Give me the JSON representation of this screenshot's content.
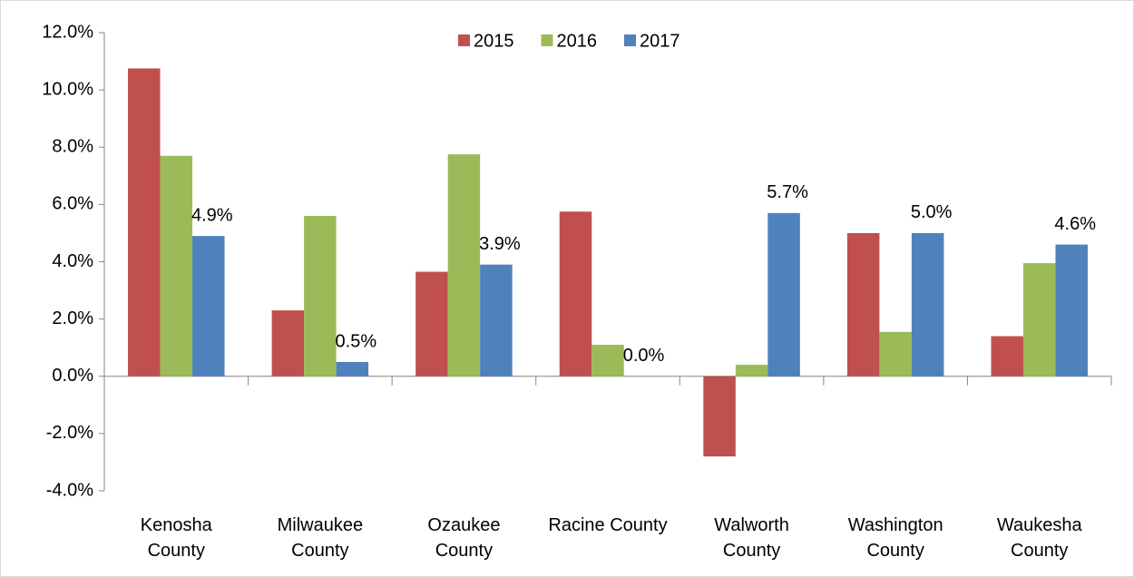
{
  "chart_data": {
    "type": "bar",
    "categories": [
      "Kenosha\nCounty",
      "Milwaukee\nCounty",
      "Ozaukee\nCounty",
      "Racine County",
      "Walworth\nCounty",
      "Washington\nCounty",
      "Waukesha\nCounty"
    ],
    "series": [
      {
        "name": "2015",
        "color": "#c0504d",
        "values": [
          10.75,
          2.3,
          3.65,
          5.75,
          -2.8,
          5.0,
          1.4
        ]
      },
      {
        "name": "2016",
        "color": "#9bbb59",
        "values": [
          7.7,
          5.6,
          7.75,
          1.1,
          0.4,
          1.55,
          3.95
        ]
      },
      {
        "name": "2017",
        "color": "#4f81bd",
        "values": [
          4.9,
          0.5,
          3.9,
          0.0,
          5.7,
          5.0,
          4.6
        ],
        "value_labels": [
          "4.9%",
          "0.5%",
          "3.9%",
          "0.0%",
          "5.7%",
          "5.0%",
          "4.6%"
        ]
      }
    ],
    "ylim": [
      -4,
      12
    ],
    "yticks": [
      {
        "value": -4,
        "label": "-4.0%"
      },
      {
        "value": -2,
        "label": "-2.0%"
      },
      {
        "value": 0,
        "label": "0.0%"
      },
      {
        "value": 2,
        "label": "2.0%"
      },
      {
        "value": 4,
        "label": "4.0%"
      },
      {
        "value": 6,
        "label": "6.0%"
      },
      {
        "value": 8,
        "label": "8.0%"
      },
      {
        "value": 10,
        "label": "10.0%"
      },
      {
        "value": 12,
        "label": "12.0%"
      }
    ],
    "legend": "top"
  }
}
